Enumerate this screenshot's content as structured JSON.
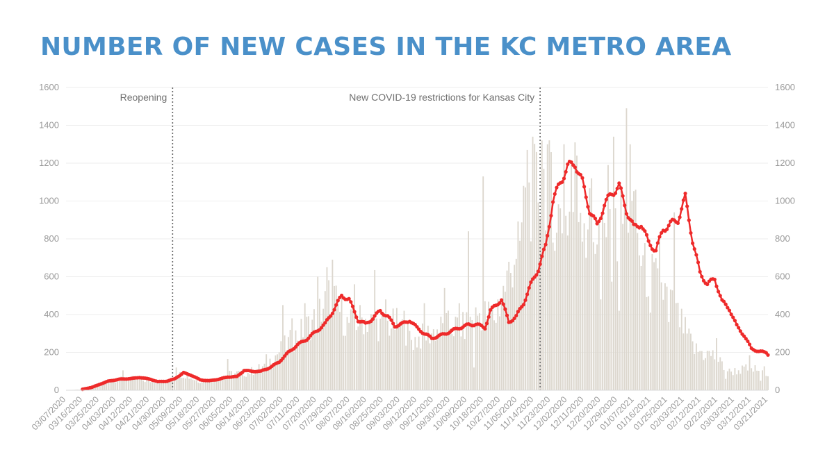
{
  "title": "NUMBER OF NEW CASES IN THE KC METRO AREA",
  "colors": {
    "title": "#4A90C9",
    "bars": "#DCD7CE",
    "line": "#EE2A2A",
    "grid": "#eeeeee",
    "annotation_line": "#666666"
  },
  "chart_data": {
    "type": "bar",
    "title": "NUMBER OF NEW CASES IN THE KC METRO AREA",
    "xlabel": "",
    "ylabel": "",
    "ylim": [
      0,
      1600
    ],
    "y_ticks": [
      0,
      200,
      400,
      600,
      800,
      1000,
      1200,
      1400,
      1600
    ],
    "x_tick_labels": [
      "03/07/2020",
      "03/16/2020",
      "03/25/2020",
      "04/03/2020",
      "04/12/2020",
      "04/21/2020",
      "04/30/2020",
      "05/09/2020",
      "05/18/2020",
      "05/27/2020",
      "06/05/2020",
      "06/14/2020",
      "06/23/2020",
      "07/02/2020",
      "07/11/2020",
      "07/20/2020",
      "07/29/2020",
      "08/07/2020",
      "08/16/2020",
      "08/25/2020",
      "09/03/2020",
      "09/12/2020",
      "09/21/2020",
      "09/30/2020",
      "10/09/2020",
      "10/18/2020",
      "10/27/2020",
      "11/05/2020",
      "11/14/2020",
      "11/23/2020",
      "12/02/2020",
      "12/11/2020",
      "12/20/2020",
      "12/29/2020",
      "01/07/2021",
      "01/16/2021",
      "01/25/2021",
      "02/03/2021",
      "02/12/2021",
      "02/22/2021",
      "03/03/2021",
      "03/12/2021",
      "03/21/2021"
    ],
    "grid": true,
    "axes": "left and right y-axes with identical scale",
    "annotations": [
      {
        "label": "Reopening",
        "date": "05/04/2020"
      },
      {
        "label": "New COVID-19 restrictions for Kansas City",
        "date": "11/20/2020"
      }
    ],
    "series": [
      {
        "type": "bar",
        "start_date": "03/07/2020",
        "end_date": "03/24/2021",
        "anchors": [
          [
            "03/07/2020",
            0
          ],
          [
            "03/16/2020",
            5
          ],
          [
            "03/25/2020",
            35
          ],
          [
            "04/03/2020",
            58
          ],
          [
            "04/12/2020",
            62
          ],
          [
            "04/21/2020",
            50
          ],
          [
            "04/30/2020",
            45
          ],
          [
            "05/09/2020",
            90
          ],
          [
            "05/18/2020",
            50
          ],
          [
            "05/27/2020",
            60
          ],
          [
            "06/05/2020",
            90
          ],
          [
            "06/14/2020",
            95
          ],
          [
            "06/23/2020",
            130
          ],
          [
            "07/02/2020",
            220
          ],
          [
            "07/11/2020",
            300
          ],
          [
            "07/20/2020",
            380
          ],
          [
            "07/29/2020",
            520
          ],
          [
            "08/07/2020",
            360
          ],
          [
            "08/16/2020",
            390
          ],
          [
            "08/25/2020",
            350
          ],
          [
            "09/03/2020",
            360
          ],
          [
            "09/12/2020",
            270
          ],
          [
            "09/21/2020",
            310
          ],
          [
            "09/30/2020",
            350
          ],
          [
            "10/09/2020",
            340
          ],
          [
            "10/18/2020",
            420
          ],
          [
            "10/27/2020",
            400
          ],
          [
            "11/05/2020",
            700
          ],
          [
            "11/14/2020",
            1050
          ],
          [
            "11/23/2020",
            1150
          ],
          [
            "12/02/2020",
            900
          ],
          [
            "12/11/2020",
            1050
          ],
          [
            "12/20/2020",
            860
          ],
          [
            "12/29/2020",
            780
          ],
          [
            "01/07/2021",
            1000
          ],
          [
            "01/16/2021",
            650
          ],
          [
            "01/25/2021",
            560
          ],
          [
            "02/03/2021",
            400
          ],
          [
            "02/12/2021",
            220
          ],
          [
            "02/22/2021",
            190
          ],
          [
            "03/03/2021",
            100
          ],
          [
            "03/12/2021",
            115
          ],
          [
            "03/21/2021",
            110
          ],
          [
            "03/24/2021",
            100
          ]
        ],
        "spikes": [
          [
            "04/07/2020",
            105
          ],
          [
            "05/06/2020",
            120
          ],
          [
            "06/03/2020",
            165
          ],
          [
            "06/24/2020",
            190
          ],
          [
            "07/03/2020",
            450
          ],
          [
            "07/08/2020",
            380
          ],
          [
            "07/15/2020",
            460
          ],
          [
            "07/22/2020",
            600
          ],
          [
            "07/27/2020",
            650
          ],
          [
            "07/30/2020",
            690
          ],
          [
            "08/11/2020",
            560
          ],
          [
            "08/22/2020",
            635
          ],
          [
            "08/28/2020",
            480
          ],
          [
            "09/07/2020",
            420
          ],
          [
            "09/18/2020",
            460
          ],
          [
            "09/29/2020",
            540
          ],
          [
            "10/07/2020",
            460
          ],
          [
            "10/12/2020",
            840
          ],
          [
            "10/15/2020",
            120
          ],
          [
            "10/20/2020",
            1130
          ],
          [
            "10/28/2020",
            480
          ],
          [
            "11/04/2020",
            620
          ],
          [
            "11/09/2020",
            790
          ],
          [
            "11/11/2020",
            1080
          ],
          [
            "11/13/2020",
            1270
          ],
          [
            "11/16/2020",
            1340
          ],
          [
            "11/21/2020",
            1320
          ],
          [
            "11/24/2020",
            1300
          ],
          [
            "11/27/2020",
            780
          ],
          [
            "12/03/2020",
            1300
          ],
          [
            "12/07/2020",
            1200
          ],
          [
            "12/09/2020",
            1310
          ],
          [
            "12/10/2020",
            1240
          ],
          [
            "12/15/2020",
            700
          ],
          [
            "12/18/2020",
            1120
          ],
          [
            "12/23/2020",
            480
          ],
          [
            "12/27/2020",
            1190
          ],
          [
            "12/30/2020",
            1340
          ],
          [
            "01/02/2021",
            420
          ],
          [
            "01/06/2021",
            1490
          ],
          [
            "01/08/2021",
            1300
          ],
          [
            "01/11/2021",
            1060
          ],
          [
            "01/19/2021",
            410
          ],
          [
            "01/24/2021",
            800
          ],
          [
            "01/29/2021",
            360
          ],
          [
            "02/01/2021",
            940
          ],
          [
            "02/06/2021",
            300
          ],
          [
            "02/17/2021",
            160
          ],
          [
            "02/24/2021",
            275
          ],
          [
            "03/01/2021",
            60
          ],
          [
            "03/14/2021",
            185
          ],
          [
            "03/20/2021",
            50
          ]
        ]
      },
      {
        "type": "line",
        "name": "",
        "start_date": "03/16/2020",
        "end_date": "03/24/2021",
        "anchors": [
          [
            "03/16/2020",
            5
          ],
          [
            "03/21/2020",
            15
          ],
          [
            "03/25/2020",
            30
          ],
          [
            "03/30/2020",
            48
          ],
          [
            "04/05/2020",
            58
          ],
          [
            "04/12/2020",
            62
          ],
          [
            "04/16/2020",
            68
          ],
          [
            "04/22/2020",
            58
          ],
          [
            "04/26/2020",
            45
          ],
          [
            "05/01/2020",
            48
          ],
          [
            "05/05/2020",
            60
          ],
          [
            "05/10/2020",
            92
          ],
          [
            "05/14/2020",
            80
          ],
          [
            "05/19/2020",
            55
          ],
          [
            "05/24/2020",
            50
          ],
          [
            "05/29/2020",
            58
          ],
          [
            "06/03/2020",
            70
          ],
          [
            "06/08/2020",
            72
          ],
          [
            "06/12/2020",
            105
          ],
          [
            "06/16/2020",
            100
          ],
          [
            "06/21/2020",
            100
          ],
          [
            "06/26/2020",
            120
          ],
          [
            "07/01/2020",
            150
          ],
          [
            "07/06/2020",
            200
          ],
          [
            "07/11/2020",
            240
          ],
          [
            "07/16/2020",
            270
          ],
          [
            "07/21/2020",
            310
          ],
          [
            "07/26/2020",
            350
          ],
          [
            "07/31/2020",
            430
          ],
          [
            "08/04/2020",
            500
          ],
          [
            "08/08/2020",
            480
          ],
          [
            "08/13/2020",
            370
          ],
          [
            "08/17/2020",
            350
          ],
          [
            "08/21/2020",
            380
          ],
          [
            "08/25/2020",
            420
          ],
          [
            "08/29/2020",
            390
          ],
          [
            "09/02/2020",
            340
          ],
          [
            "09/06/2020",
            350
          ],
          [
            "09/10/2020",
            370
          ],
          [
            "09/14/2020",
            330
          ],
          [
            "09/18/2020",
            300
          ],
          [
            "09/22/2020",
            275
          ],
          [
            "09/27/2020",
            290
          ],
          [
            "10/02/2020",
            310
          ],
          [
            "10/07/2020",
            330
          ],
          [
            "10/12/2020",
            345
          ],
          [
            "10/16/2020",
            350
          ],
          [
            "10/21/2020",
            330
          ],
          [
            "10/24/2020",
            420
          ],
          [
            "10/27/2020",
            450
          ],
          [
            "10/30/2020",
            480
          ],
          [
            "11/03/2020",
            360
          ],
          [
            "11/07/2020",
            390
          ],
          [
            "11/11/2020",
            460
          ],
          [
            "11/15/2020",
            560
          ],
          [
            "11/19/2020",
            640
          ],
          [
            "11/23/2020",
            760
          ],
          [
            "11/27/2020",
            1000
          ],
          [
            "12/01/2020",
            1100
          ],
          [
            "12/05/2020",
            1180
          ],
          [
            "12/09/2020",
            1200
          ],
          [
            "12/13/2020",
            1100
          ],
          [
            "12/17/2020",
            950
          ],
          [
            "12/21/2020",
            870
          ],
          [
            "12/25/2020",
            980
          ],
          [
            "12/29/2020",
            1040
          ],
          [
            "01/02/2021",
            1080
          ],
          [
            "01/06/2021",
            950
          ],
          [
            "01/10/2021",
            860
          ],
          [
            "01/14/2021",
            880
          ],
          [
            "01/18/2021",
            780
          ],
          [
            "01/22/2021",
            740
          ],
          [
            "01/26/2021",
            850
          ],
          [
            "01/30/2021",
            880
          ],
          [
            "02/03/2021",
            900
          ],
          [
            "02/07/2021",
            1020
          ],
          [
            "02/11/2021",
            790
          ],
          [
            "02/15/2021",
            620
          ],
          [
            "02/19/2021",
            560
          ],
          [
            "02/23/2021",
            590
          ],
          [
            "02/27/2021",
            470
          ],
          [
            "03/03/2021",
            430
          ],
          [
            "03/07/2021",
            340
          ],
          [
            "03/11/2021",
            290
          ],
          [
            "03/15/2021",
            220
          ],
          [
            "03/19/2021",
            205
          ],
          [
            "03/23/2021",
            200
          ],
          [
            "03/24/2021",
            190
          ]
        ]
      }
    ]
  }
}
